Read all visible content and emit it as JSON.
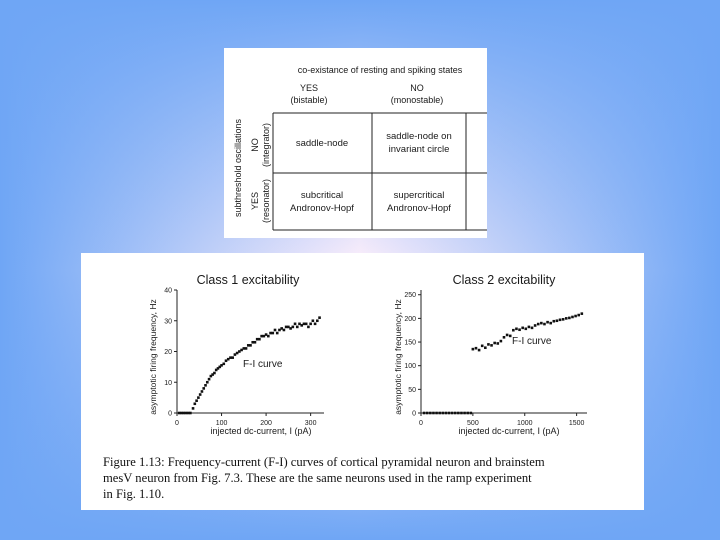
{
  "table": {
    "title": "co-existance of resting and spiking states",
    "col_yes": "YES",
    "col_yes_sub": "(bistable)",
    "col_no": "NO",
    "col_no_sub": "(monostable)",
    "row_axis_label": "subthreshold oscillations",
    "row_no": "NO",
    "row_no_sub": "(integrator)",
    "row_yes": "YES",
    "row_yes_sub": "(resonator)",
    "cell_11_line1": "saddle-node",
    "cell_12_line1": "saddle-node on",
    "cell_12_line2": "invariant circle",
    "cell_21_line1": "subcritical",
    "cell_21_line2": "Andronov-Hopf",
    "cell_22_line1": "supercritical",
    "cell_22_line2": "Andronov-Hopf"
  },
  "chart_data": [
    {
      "type": "scatter",
      "title": "Class 1 excitability",
      "xlabel": "injected dc-current, I (pA)",
      "ylabel": "asymptotic firing frequency, Hz",
      "xlim": [
        0,
        330
      ],
      "ylim": [
        0,
        40
      ],
      "xticks": [
        0,
        100,
        200,
        300
      ],
      "yticks": [
        0,
        10,
        20,
        30,
        40
      ],
      "annotation": "F-I curve",
      "points": [
        [
          5,
          0
        ],
        [
          10,
          0
        ],
        [
          15,
          0
        ],
        [
          20,
          0
        ],
        [
          25,
          0
        ],
        [
          30,
          0
        ],
        [
          36,
          1.5
        ],
        [
          40,
          3
        ],
        [
          44,
          4
        ],
        [
          48,
          5
        ],
        [
          52,
          6
        ],
        [
          56,
          7
        ],
        [
          60,
          8
        ],
        [
          64,
          9
        ],
        [
          68,
          10
        ],
        [
          72,
          11
        ],
        [
          76,
          12
        ],
        [
          80,
          12.5
        ],
        [
          84,
          13
        ],
        [
          88,
          14
        ],
        [
          92,
          14.5
        ],
        [
          96,
          15
        ],
        [
          100,
          15.5
        ],
        [
          105,
          16
        ],
        [
          110,
          17
        ],
        [
          115,
          17.5
        ],
        [
          120,
          18
        ],
        [
          125,
          18
        ],
        [
          130,
          19
        ],
        [
          135,
          19.5
        ],
        [
          140,
          20
        ],
        [
          145,
          20.5
        ],
        [
          150,
          21
        ],
        [
          155,
          21
        ],
        [
          160,
          22
        ],
        [
          165,
          22
        ],
        [
          170,
          23
        ],
        [
          175,
          23
        ],
        [
          180,
          24
        ],
        [
          185,
          24
        ],
        [
          190,
          25
        ],
        [
          195,
          25
        ],
        [
          200,
          25.5
        ],
        [
          205,
          25
        ],
        [
          210,
          26
        ],
        [
          215,
          26
        ],
        [
          220,
          27
        ],
        [
          225,
          26
        ],
        [
          230,
          27
        ],
        [
          235,
          27.5
        ],
        [
          240,
          27
        ],
        [
          245,
          28
        ],
        [
          250,
          28
        ],
        [
          255,
          27.5
        ],
        [
          260,
          28
        ],
        [
          265,
          29
        ],
        [
          270,
          28
        ],
        [
          275,
          29
        ],
        [
          280,
          28.5
        ],
        [
          285,
          29
        ],
        [
          290,
          29
        ],
        [
          295,
          28
        ],
        [
          300,
          29
        ],
        [
          305,
          30
        ],
        [
          310,
          29
        ],
        [
          315,
          30
        ],
        [
          320,
          31
        ]
      ]
    },
    {
      "type": "scatter",
      "title": "Class 2 excitability",
      "xlabel": "injected dc-current, I (pA)",
      "ylabel": "asymptotic firing frequency, Hz",
      "xlim": [
        0,
        1600
      ],
      "ylim": [
        0,
        260
      ],
      "xticks": [
        0,
        500,
        1000,
        1500
      ],
      "yticks": [
        0,
        50,
        100,
        150,
        200,
        250
      ],
      "annotation": "F-I curve",
      "points": [
        [
          30,
          0
        ],
        [
          60,
          0
        ],
        [
          90,
          0
        ],
        [
          120,
          0
        ],
        [
          150,
          0
        ],
        [
          180,
          0
        ],
        [
          210,
          0
        ],
        [
          240,
          0
        ],
        [
          270,
          0
        ],
        [
          300,
          0
        ],
        [
          330,
          0
        ],
        [
          360,
          0
        ],
        [
          390,
          0
        ],
        [
          420,
          0
        ],
        [
          450,
          0
        ],
        [
          480,
          0
        ],
        [
          500,
          135
        ],
        [
          530,
          137
        ],
        [
          560,
          133
        ],
        [
          590,
          142
        ],
        [
          620,
          138
        ],
        [
          650,
          145
        ],
        [
          680,
          143
        ],
        [
          710,
          148
        ],
        [
          740,
          147
        ],
        [
          770,
          152
        ],
        [
          800,
          160
        ],
        [
          830,
          165
        ],
        [
          860,
          163
        ],
        [
          890,
          175
        ],
        [
          920,
          178
        ],
        [
          950,
          176
        ],
        [
          980,
          180
        ],
        [
          1010,
          178
        ],
        [
          1040,
          182
        ],
        [
          1070,
          180
        ],
        [
          1100,
          185
        ],
        [
          1130,
          188
        ],
        [
          1160,
          190
        ],
        [
          1190,
          188
        ],
        [
          1220,
          192
        ],
        [
          1250,
          190
        ],
        [
          1280,
          194
        ],
        [
          1310,
          195
        ],
        [
          1340,
          197
        ],
        [
          1370,
          198
        ],
        [
          1400,
          200
        ],
        [
          1430,
          201
        ],
        [
          1460,
          203
        ],
        [
          1490,
          205
        ],
        [
          1520,
          207
        ],
        [
          1550,
          210
        ]
      ]
    }
  ],
  "caption": {
    "line1": "Figure 1.13: Frequency-current (F-I) curves of cortical pyramidal neuron and brainstem",
    "line2": "mesV neuron from Fig. 7.3. These are the same neurons used in the ramp experiment",
    "line3": "in Fig. 1.10."
  }
}
